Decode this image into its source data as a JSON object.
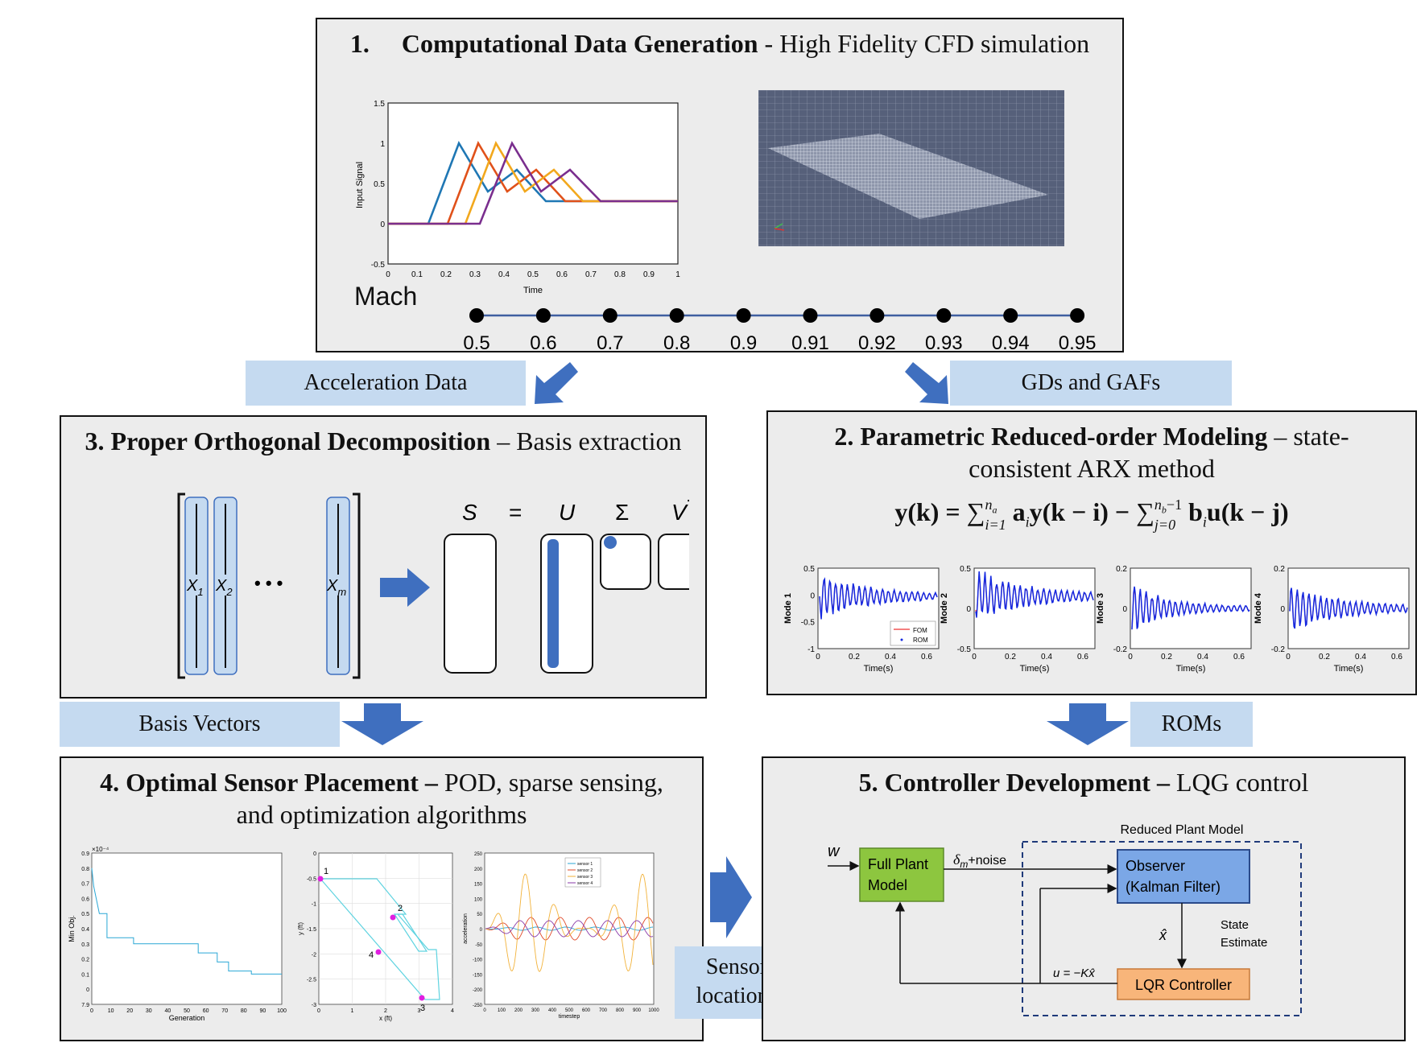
{
  "panel1": {
    "num": "1.",
    "title_bold": "Computational Data Generation",
    "title_rest": " - High Fidelity CFD simulation",
    "plot": {
      "ylabel": "Input Signal",
      "xlabel": "Time",
      "yticks": [
        "1.5",
        "1",
        "0.5",
        "0",
        "-0.5"
      ],
      "xticks": [
        "0",
        "0.1",
        "0.2",
        "0.3",
        "0.4",
        "0.5",
        "0.6",
        "0.7",
        "0.8",
        "0.9",
        "1"
      ]
    },
    "mach_label": "Mach",
    "mach_values": [
      "0.5",
      "0.6",
      "0.7",
      "0.8",
      "0.9",
      "0.91",
      "0.92",
      "0.93",
      "0.94",
      "0.95"
    ]
  },
  "arrows": {
    "acceleration": "Acceleration Data",
    "gds": "GDs and GAFs",
    "basis": "Basis Vectors",
    "roms": "ROMs",
    "sensor_line1": "Sensor",
    "sensor_line2": "locations"
  },
  "panel3": {
    "title_bold": "3. Proper Orthogonal Decomposition",
    "title_rest": " – Basis extraction",
    "eq": {
      "s": "S",
      "eq": "=",
      "u": "U",
      "sigma": "Σ",
      "v": "V",
      "vt": "T"
    },
    "x_labels": [
      "X",
      "X",
      "X"
    ],
    "x_subs": [
      "1",
      "2",
      "m"
    ],
    "dots": "• • •"
  },
  "panel2": {
    "title_bold": "2. Parametric Reduced-order Modeling",
    "title_rest": " – state-",
    "title_line2": "consistent ARX method",
    "eq_lhs": "y(k) = ",
    "eq_sum1": "∑",
    "eq_sup1": "n",
    "eq_sup1sub": "a",
    "eq_sub1": "i=1",
    "eq_mid": " a",
    "eq_mid_sub": "i",
    "eq_mid2": "y(k − i) − ",
    "eq_sum2": "∑",
    "eq_sup2": "n",
    "eq_sup2sub": "b",
    "eq_sup2rest": "−1",
    "eq_sub2": "j=0",
    "eq_b": " b",
    "eq_b_sub": "i",
    "eq_end": "u(k − j)",
    "modes": [
      {
        "ylabel": "Mode 1",
        "yticks": [
          "0.5",
          "0",
          "-0.5",
          "-1"
        ]
      },
      {
        "ylabel": "Mode 2",
        "yticks": [
          "0.5",
          "0",
          "-0.5"
        ]
      },
      {
        "ylabel": "Mode 3",
        "yticks": [
          "0.2",
          "0",
          "-0.2"
        ]
      },
      {
        "ylabel": "Mode 4",
        "yticks": [
          "0.2",
          "0",
          "-0.2"
        ]
      }
    ],
    "xticks": [
      "0",
      "0.2",
      "0.4",
      "0.6"
    ],
    "xlabel": "Time(s)",
    "legend": [
      "FOM",
      "ROM"
    ]
  },
  "panel4": {
    "title_bold": "4. Optimal Sensor Placement –",
    "title_rest": " POD, sparse sensing,",
    "title_line2": "and optimization algorithms",
    "plot1": {
      "ylabel": "Min Obj.",
      "xlabel": "Generation",
      "exp": "×10⁻⁴",
      "yticks": [
        "0.9",
        "0.8",
        "0.7",
        "0.6",
        "0.5",
        "0.4",
        "0.3",
        "0.2",
        "0.1",
        "0",
        "7.9"
      ],
      "xticks": [
        "0",
        "10",
        "20",
        "30",
        "40",
        "50",
        "60",
        "70",
        "80",
        "90",
        "100"
      ]
    },
    "plot2": {
      "ylabel": "y (ft)",
      "xlabel": "x (ft)",
      "yticks": [
        "0",
        "-0.5",
        "-1",
        "-1.5",
        "-2",
        "-2.5",
        "-3"
      ],
      "xticks": [
        "0",
        "1",
        "2",
        "3",
        "4"
      ],
      "points": [
        "1",
        "2",
        "3",
        "4"
      ]
    },
    "plot3": {
      "ylabel": "acceleration",
      "xlabel": "timestep",
      "yticks": [
        "250",
        "200",
        "150",
        "100",
        "50",
        "0",
        "-50",
        "-100",
        "-150",
        "-200",
        "-250"
      ],
      "xticks": [
        "0",
        "100",
        "200",
        "300",
        "400",
        "500",
        "600",
        "700",
        "800",
        "900",
        "1000"
      ],
      "legend": [
        "sensor 1",
        "sensor 2",
        "sensor 3",
        "sensor 4"
      ]
    }
  },
  "panel5": {
    "title_bold": "5. Controller Development –",
    "title_rest": " LQG control",
    "reduced_label": "Reduced Plant Model",
    "w": "w",
    "full_plant_1": "Full Plant",
    "full_plant_2": "Model",
    "delta": "δ",
    "delta_sub": "m",
    "noise": "+noise",
    "observer_1": "Observer",
    "observer_2": "(Kalman Filter)",
    "xhat": "x̂",
    "state_1": "State",
    "state_2": "Estimate",
    "u_eq": "u = −Kx̂",
    "lqr": "LQR Controller"
  },
  "colors": {
    "label_bg": "#c5daf0",
    "arrow": "#3f6fbf",
    "green": "#8dc63f",
    "blue_box": "#7ba7e6",
    "orange": "#f8b57a"
  }
}
